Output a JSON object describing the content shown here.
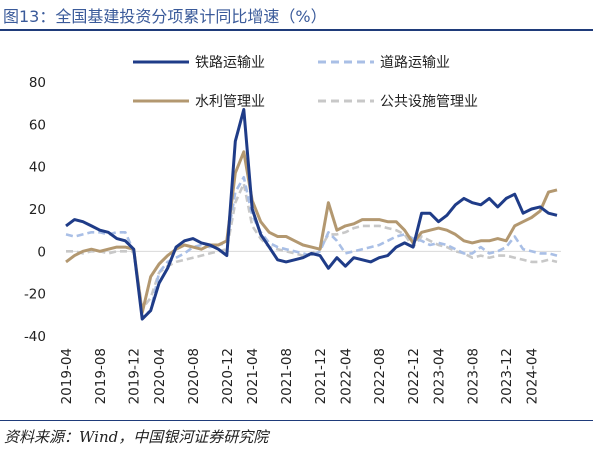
{
  "figure": {
    "title": "图13：全国基建投资分项累计同比增速（%）",
    "source": "资料来源：Wind，中国银河证券研究院"
  },
  "chart_data": {
    "type": "line",
    "ylim": [
      -40,
      80
    ],
    "yticks": [
      "80",
      "60",
      "40",
      "20",
      "0",
      "-20",
      "-40"
    ],
    "yticks_values": [
      80,
      60,
      40,
      20,
      0,
      -20,
      -40
    ],
    "x": [
      "2019-04",
      "2019-05",
      "2019-06",
      "2019-07",
      "2019-08",
      "2019-09",
      "2019-10",
      "2019-11",
      "2019-12",
      "2020-02",
      "2020-03",
      "2020-04",
      "2020-05",
      "2020-06",
      "2020-07",
      "2020-08",
      "2020-09",
      "2020-10",
      "2020-11",
      "2020-12",
      "2021-02",
      "2021-03",
      "2021-04",
      "2021-05",
      "2021-06",
      "2021-07",
      "2021-08",
      "2021-09",
      "2021-10",
      "2021-11",
      "2021-12",
      "2022-02",
      "2022-03",
      "2022-04",
      "2022-05",
      "2022-06",
      "2022-07",
      "2022-08",
      "2022-09",
      "2022-10",
      "2022-11",
      "2022-12",
      "2023-02",
      "2023-03",
      "2023-04",
      "2023-05",
      "2023-06",
      "2023-07",
      "2023-08",
      "2023-09",
      "2023-10",
      "2023-11",
      "2023-12",
      "2024-02",
      "2024-03",
      "2024-04",
      "2024-05",
      "2024-06",
      "2024-07"
    ],
    "xtick_labels": [
      "2019-04",
      "2019-08",
      "2019-12",
      "2020-04",
      "2020-08",
      "2020-12",
      "2021-04",
      "2021-08",
      "2021-12",
      "2022-04",
      "2022-08",
      "2022-12",
      "2023-04",
      "2023-08",
      "2023-12",
      "2024-04"
    ],
    "series": [
      {
        "name": "铁路运输业",
        "color": "#1f3c88",
        "dash": "solid",
        "values": [
          12,
          15,
          14,
          12,
          10,
          9,
          6,
          5,
          1,
          -32,
          -28,
          -15,
          -8,
          2,
          5,
          6,
          4,
          3,
          1,
          -2,
          52,
          67,
          20,
          8,
          2,
          -4,
          -5,
          -4,
          -3,
          -1,
          -2,
          -8,
          -3,
          -7,
          -3,
          -4,
          -5,
          -3,
          -2,
          2,
          4,
          2,
          18,
          18,
          14,
          17,
          22,
          25,
          23,
          22,
          25,
          21,
          25,
          27,
          18,
          20,
          21,
          18,
          17
        ]
      },
      {
        "name": "道路运输业",
        "color": "#a9bfe6",
        "dash": "dashed",
        "values": [
          8,
          7,
          8,
          9,
          9,
          8,
          9,
          9,
          0,
          -31,
          -28,
          -10,
          -5,
          -3,
          -1,
          2,
          3,
          2,
          3,
          4,
          28,
          35,
          17,
          9,
          4,
          2,
          1,
          0,
          -1,
          -2,
          0,
          9,
          5,
          -1,
          0,
          1,
          2,
          3,
          5,
          7,
          8,
          6,
          5,
          3,
          4,
          3,
          1,
          -1,
          -1,
          2,
          -1,
          0,
          2,
          7,
          1,
          0,
          -1,
          -1,
          -2
        ]
      },
      {
        "name": "水利管理业",
        "color": "#b39870",
        "dash": "solid",
        "values": [
          -5,
          -2,
          0,
          1,
          0,
          1,
          2,
          2,
          1,
          -29,
          -12,
          -6,
          -2,
          1,
          3,
          2,
          1,
          3,
          3,
          5,
          37,
          47,
          24,
          14,
          9,
          7,
          7,
          5,
          3,
          2,
          1,
          23,
          10,
          12,
          13,
          15,
          15,
          15,
          14,
          14,
          10,
          4,
          9,
          10,
          11,
          10,
          8,
          5,
          4,
          5,
          5,
          6,
          5,
          12,
          14,
          16,
          19,
          28,
          29
        ]
      },
      {
        "name": "公共设施管理业",
        "color": "#c8c8c8",
        "dash": "dashed",
        "values": [
          0,
          0,
          -1,
          0,
          0,
          -1,
          0,
          0,
          0,
          -27,
          -22,
          -10,
          -7,
          -5,
          -4,
          -3,
          -2,
          -1,
          0,
          1,
          23,
          32,
          12,
          6,
          2,
          1,
          0,
          -1,
          -2,
          -1,
          1,
          8,
          8,
          9,
          11,
          12,
          12,
          12,
          11,
          10,
          8,
          2,
          7,
          5,
          3,
          2,
          0,
          -1,
          -3,
          -2,
          -3,
          -2,
          -2,
          -3,
          -4,
          -5,
          -5,
          -4,
          -5
        ]
      }
    ]
  }
}
